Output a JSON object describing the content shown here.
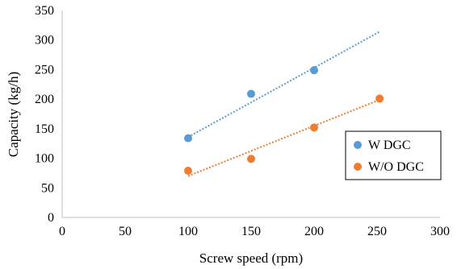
{
  "chart_data": {
    "type": "scatter",
    "title": "",
    "xlabel": "Screw speed (rpm)",
    "ylabel": "Capacity (kg/h)",
    "xlim": [
      0,
      300
    ],
    "ylim": [
      0,
      350
    ],
    "xticks": [
      "0",
      "50",
      "100",
      "150",
      "200",
      "250",
      "300"
    ],
    "yticks": [
      "0",
      "50",
      "100",
      "150",
      "200",
      "250",
      "300",
      "350"
    ],
    "grid": "none",
    "legend_position": "right",
    "series": [
      {
        "name": "W DGC",
        "color": "#5b9bd5",
        "x": [
          100,
          150,
          200
        ],
        "y": [
          134,
          209,
          249
        ],
        "trendline": {
          "style": "dotted",
          "x": [
            100,
            252
          ],
          "y": [
            136,
            314
          ]
        }
      },
      {
        "name": "W/O DGC",
        "color": "#ed7d31",
        "x": [
          100,
          150,
          200,
          252
        ],
        "y": [
          79,
          99,
          152,
          201
        ],
        "trendline": {
          "style": "dotted",
          "x": [
            100,
            252
          ],
          "y": [
            70,
            199
          ]
        }
      }
    ]
  }
}
